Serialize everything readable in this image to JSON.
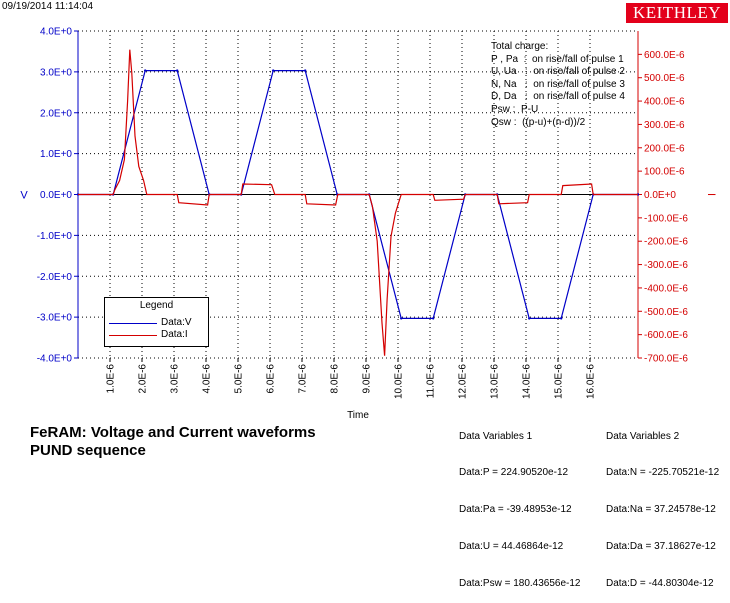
{
  "header": {
    "timestamp": "09/19/2014 11:14:04",
    "logo": "KEITHLEY"
  },
  "colors": {
    "voltage": "#0000c8",
    "current": "#d40000",
    "grid": "#000000"
  },
  "charge_info": {
    "lines": [
      "Total charge:",
      "P , Pa  :  on rise/fall of pulse 1",
      "U, Ua   :  on rise/fall of pulse 2",
      "N, Na   :  on rise/fall of pulse 3",
      "D, Da   :  on rise/fall of pulse 4",
      "Psw :  P-U",
      "Qsw :  ((p-u)+(n-d))/2"
    ]
  },
  "legend": {
    "title": "Legend",
    "items": [
      {
        "label": "Data:V",
        "color": "#0000c8"
      },
      {
        "label": "Data:I",
        "color": "#d40000"
      }
    ]
  },
  "caption": {
    "line1": "FeRAM: Voltage and Current waveforms",
    "line2": "PUND sequence"
  },
  "data_variables_1": {
    "title": "Data Variables 1",
    "rows": [
      "Data:P = 224.90520e-12",
      "Data:Pa = -39.48953e-12",
      "Data:U = 44.46864e-12",
      "Data:Psw = 180.43656e-12"
    ]
  },
  "data_variables_2": {
    "title": "Data Variables 2",
    "rows": [
      "Data:N = -225.70521e-12",
      "Data:Na = 37.24578e-12",
      "Data:Da = 37.18627e-12",
      "Data:D = -44.80304e-12"
    ]
  },
  "chart_data": {
    "type": "line",
    "xlabel": "Time",
    "ylabel_left": "V",
    "ylabel_right": "I",
    "xlim": [
      0,
      1.75e-05
    ],
    "ylim_left": [
      -4,
      4
    ],
    "ylim_right": [
      -0.0007,
      0.0007
    ],
    "x_ticks": [
      "1.0E-6",
      "2.0E-6",
      "3.0E-6",
      "4.0E-6",
      "5.0E-6",
      "6.0E-6",
      "7.0E-6",
      "8.0E-6",
      "9.0E-6",
      "10.0E-6",
      "11.0E-6",
      "12.0E-6",
      "13.0E-6",
      "14.0E-6",
      "15.0E-6",
      "16.0E-6"
    ],
    "y_left_ticks": [
      "4.0E+0",
      "3.0E+0",
      "2.0E+0",
      "1.0E+0",
      "0.0E+0",
      "-1.0E+0",
      "-2.0E+0",
      "-3.0E+0",
      "-4.0E+0"
    ],
    "y_right_ticks": [
      "600.0E-6",
      "500.0E-6",
      "400.0E-6",
      "300.0E-6",
      "200.0E-6",
      "100.0E-6",
      "0.0E+0",
      "-100.0E-6",
      "-200.0E-6",
      "-300.0E-6",
      "-400.0E-6",
      "-500.0E-6",
      "-600.0E-6",
      "-700.0E-6"
    ],
    "grid": true,
    "series": [
      {
        "name": "Data:V",
        "axis": "left",
        "points": [
          [
            0,
            0
          ],
          [
            1.1e-06,
            0
          ],
          [
            2.1e-06,
            3.03
          ],
          [
            3.1e-06,
            3.03
          ],
          [
            4.1e-06,
            0
          ],
          [
            5.1e-06,
            0
          ],
          [
            6.1e-06,
            3.03
          ],
          [
            7.1e-06,
            3.03
          ],
          [
            8.1e-06,
            0
          ],
          [
            9.1e-06,
            0
          ],
          [
            1.01e-05,
            -3.03
          ],
          [
            1.11e-05,
            -3.03
          ],
          [
            1.21e-05,
            0
          ],
          [
            1.31e-05,
            0
          ],
          [
            1.41e-05,
            -3.03
          ],
          [
            1.51e-05,
            -3.03
          ],
          [
            1.61e-05,
            0
          ],
          [
            1.75e-05,
            0
          ]
        ]
      },
      {
        "name": "Data:I",
        "axis": "right",
        "points": [
          [
            0,
            0
          ],
          [
            1.1e-06,
            0
          ],
          [
            1.15e-06,
            2e-05
          ],
          [
            1.3e-06,
            6e-05
          ],
          [
            1.45e-06,
            0.00015
          ],
          [
            1.55e-06,
            0.0004
          ],
          [
            1.62e-06,
            0.00062
          ],
          [
            1.68e-06,
            0.00052
          ],
          [
            1.78e-06,
            0.00025
          ],
          [
            1.9e-06,
            0.00012
          ],
          [
            2.05e-06,
            6e-05
          ],
          [
            2.15e-06,
            0
          ],
          [
            3.1e-06,
            0
          ],
          [
            3.15e-06,
            -3.5e-05
          ],
          [
            4.05e-06,
            -4.5e-05
          ],
          [
            4.1e-06,
            0
          ],
          [
            5.1e-06,
            0
          ],
          [
            5.15e-06,
            4.5e-05
          ],
          [
            6.05e-06,
            4.2e-05
          ],
          [
            6.15e-06,
            0
          ],
          [
            7.1e-06,
            0
          ],
          [
            7.15e-06,
            -4e-05
          ],
          [
            8.05e-06,
            -4.5e-05
          ],
          [
            8.12e-06,
            0
          ],
          [
            9.1e-06,
            0
          ],
          [
            9.2e-06,
            -5e-05
          ],
          [
            9.35e-06,
            -0.0002
          ],
          [
            9.5e-06,
            -0.00055
          ],
          [
            9.58e-06,
            -0.00069
          ],
          [
            9.66e-06,
            -0.00045
          ],
          [
            9.78e-06,
            -0.00018
          ],
          [
            9.92e-06,
            -8e-05
          ],
          [
            1.01e-05,
            0
          ],
          [
            1.11e-05,
            0
          ],
          [
            1.115e-05,
            -2.5e-05
          ],
          [
            1.205e-05,
            -2e-05
          ],
          [
            1.21e-05,
            0
          ],
          [
            1.31e-05,
            0
          ],
          [
            1.315e-05,
            -4e-05
          ],
          [
            1.405e-05,
            -3.5e-05
          ],
          [
            1.41e-05,
            0
          ],
          [
            1.51e-05,
            0
          ],
          [
            1.515e-05,
            3.8e-05
          ],
          [
            1.605e-05,
            4.5e-05
          ],
          [
            1.61e-05,
            0
          ],
          [
            1.75e-05,
            0
          ]
        ]
      }
    ]
  }
}
